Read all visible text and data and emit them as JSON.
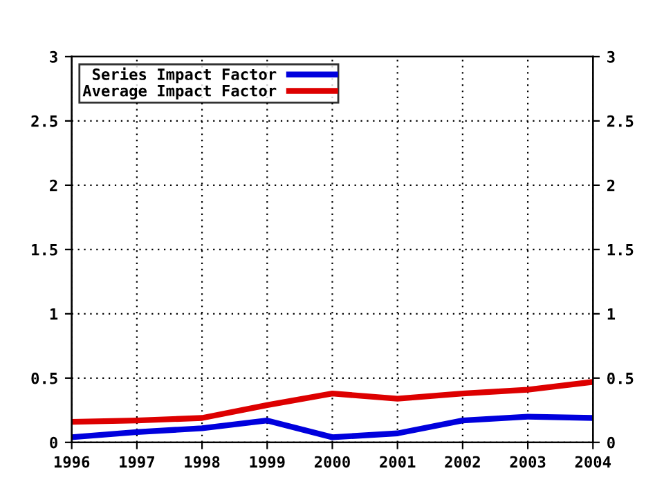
{
  "chart_data": {
    "type": "line",
    "x": [
      1996,
      1997,
      1998,
      1999,
      2000,
      2001,
      2002,
      2003,
      2004
    ],
    "series": [
      {
        "name": "Series Impact Factor",
        "color": "#0000dd",
        "values": [
          0.04,
          0.08,
          0.11,
          0.17,
          0.04,
          0.07,
          0.17,
          0.2,
          0.19
        ]
      },
      {
        "name": "Average Impact Factor",
        "color": "#dd0000",
        "values": [
          0.16,
          0.17,
          0.19,
          0.29,
          0.38,
          0.34,
          0.38,
          0.41,
          0.47
        ]
      }
    ],
    "xlim": [
      1996,
      2004
    ],
    "xticks": [
      1996,
      1997,
      1998,
      1999,
      2000,
      2001,
      2002,
      2003,
      2004
    ],
    "ylim": [
      0,
      3
    ],
    "yticks": [
      0,
      0.5,
      1,
      1.5,
      2,
      2.5,
      3
    ],
    "y2lim": [
      0,
      3
    ],
    "y2ticks": [
      0,
      0.5,
      1,
      1.5,
      2,
      2.5,
      3
    ],
    "grid": true,
    "legend": "top left",
    "marker": "none",
    "line_style": "solid"
  }
}
